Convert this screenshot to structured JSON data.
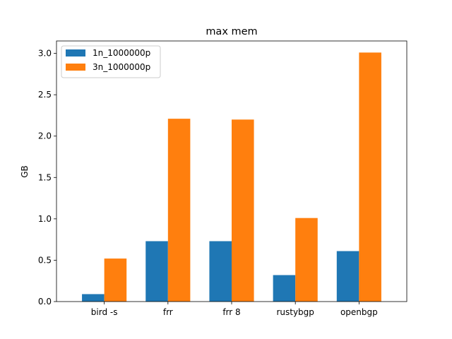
{
  "chart_data": {
    "type": "bar",
    "title": "max mem",
    "xlabel": "",
    "ylabel": "GB",
    "categories": [
      "bird -s",
      "frr",
      "frr 8",
      "rustybgp",
      "openbgp"
    ],
    "series": [
      {
        "name": "1n_1000000p",
        "color": "#1f77b4",
        "values": [
          0.09,
          0.73,
          0.73,
          0.32,
          0.61
        ]
      },
      {
        "name": "3n_1000000p",
        "color": "#ff7f0e",
        "values": [
          0.52,
          2.21,
          2.2,
          1.01,
          3.01
        ]
      }
    ],
    "ylim": [
      0,
      3.15
    ],
    "yticks": [
      "0.0",
      "0.5",
      "1.0",
      "1.5",
      "2.0",
      "2.5",
      "3.0"
    ],
    "grid": false,
    "legend_position": "top-left"
  }
}
